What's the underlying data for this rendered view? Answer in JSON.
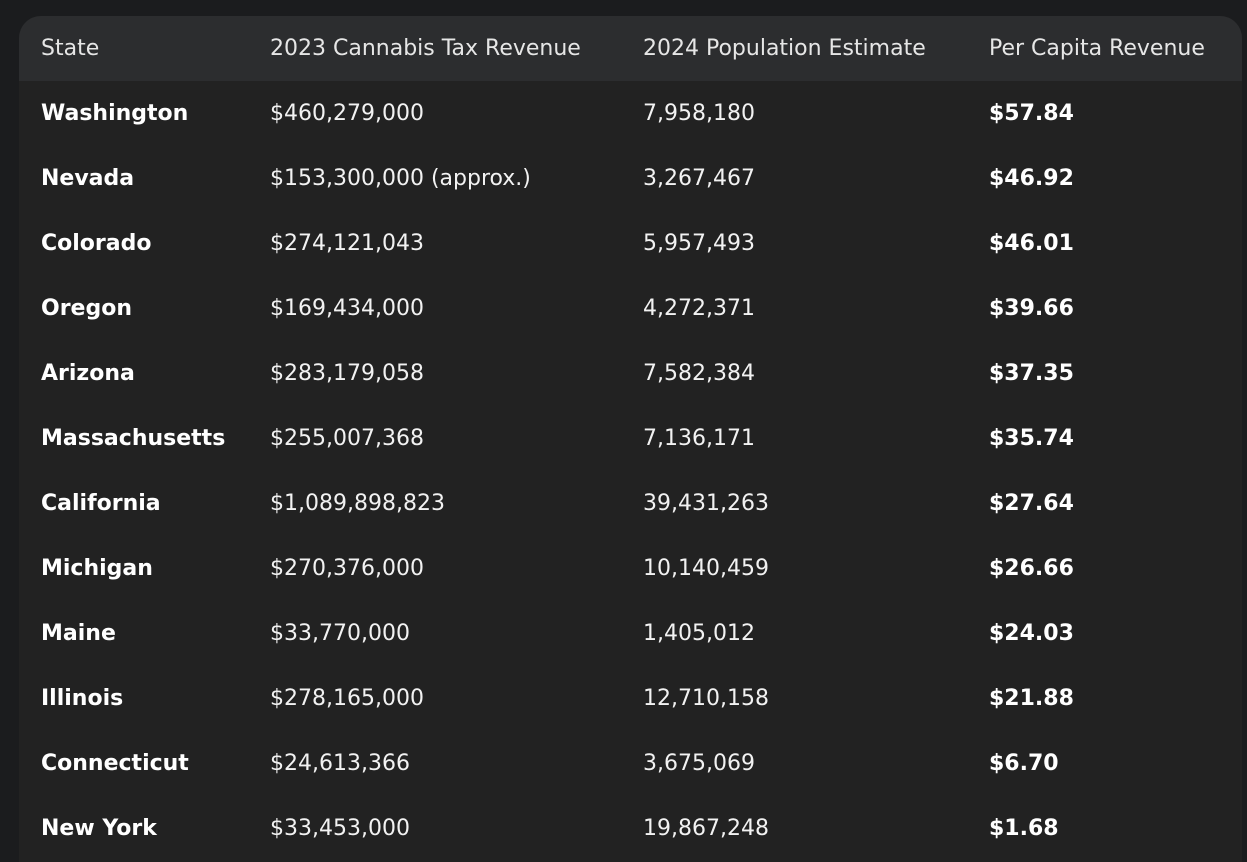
{
  "table": {
    "headers": [
      "State",
      "2023 Cannabis Tax Revenue",
      "2024 Population Estimate",
      "Per Capita Revenue"
    ],
    "rows": [
      [
        "Washington",
        "$460,279,000",
        "7,958,180",
        "$57.84"
      ],
      [
        "Nevada",
        "$153,300,000 (approx.)",
        "3,267,467",
        "$46.92"
      ],
      [
        "Colorado",
        "$274,121,043",
        "5,957,493",
        "$46.01"
      ],
      [
        "Oregon",
        "$169,434,000",
        "4,272,371",
        "$39.66"
      ],
      [
        "Arizona",
        "$283,179,058",
        "7,582,384",
        "$37.35"
      ],
      [
        "Massachusetts",
        "$255,007,368",
        "7,136,171",
        "$35.74"
      ],
      [
        "California",
        "$1,089,898,823",
        "39,431,263",
        "$27.64"
      ],
      [
        "Michigan",
        "$270,376,000",
        "10,140,459",
        "$26.66"
      ],
      [
        "Maine",
        "$33,770,000",
        "1,405,012",
        "$24.03"
      ],
      [
        "Illinois",
        "$278,165,000",
        "12,710,158",
        "$21.88"
      ],
      [
        "Connecticut",
        "$24,613,366",
        "3,675,069",
        "$6.70"
      ],
      [
        "New York",
        "$33,453,000",
        "19,867,248",
        "$1.68"
      ]
    ]
  }
}
